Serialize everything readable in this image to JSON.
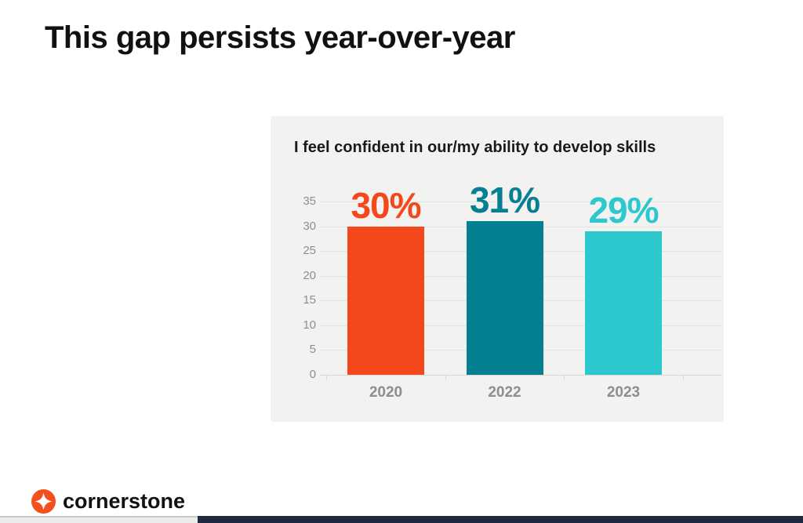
{
  "slide": {
    "title": "This gap persists year-over-year"
  },
  "chart_data": {
    "type": "bar",
    "title": "I feel confident in our/my ability to develop skills",
    "categories": [
      "2020",
      "2022",
      "2023"
    ],
    "values": [
      30,
      31,
      29
    ],
    "value_labels": [
      "30%",
      "31%",
      "29%"
    ],
    "bar_colors": [
      "#f4481c",
      "#057f92",
      "#2cc8cd"
    ],
    "ylim": [
      0,
      35
    ],
    "yticks": [
      0,
      5,
      10,
      15,
      20,
      25,
      30,
      35
    ],
    "grid": true,
    "legend": false,
    "panel_background": "#f2f2f1",
    "axis_label_color": "#8e8e8e"
  },
  "footer": {
    "logo_text": "cornerstone",
    "logo_color": "#f4501e"
  },
  "bottom_bar": {
    "track_color": "#ececec",
    "fill_color": "#1f2a40"
  }
}
